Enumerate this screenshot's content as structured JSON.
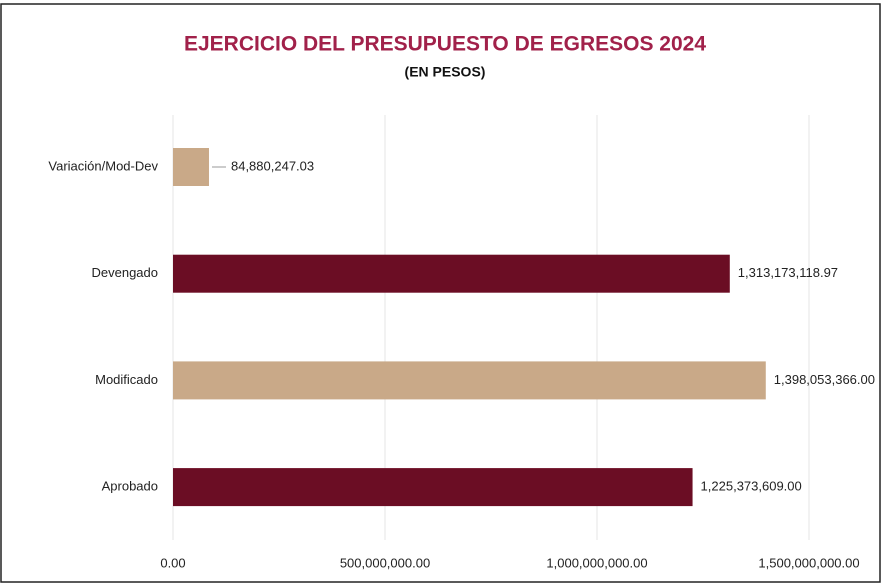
{
  "chart_data": {
    "type": "hbar",
    "title": "EJERCICIO DEL PRESUPUESTO DE EGRESOS 2024",
    "subtitle": "(EN PESOS)",
    "categories": [
      "Variación/Mod-Dev",
      "Devengado",
      "Modificado",
      "Aprobado"
    ],
    "values": [
      84880247.03,
      1313173118.97,
      1398053366.0,
      1225373609.0
    ],
    "value_labels": [
      "84,880,247.03",
      "1,313,173,118.97",
      "1,398,053,366.00",
      "1,225,373,609.00"
    ],
    "colors": [
      "#c9a988",
      "#6b0d24",
      "#c9a988",
      "#6b0d24"
    ],
    "xlim": [
      0,
      1500000000
    ],
    "xticks": [
      {
        "value": 0,
        "label": "0.00"
      },
      {
        "value": 500000000,
        "label": "500,000,000.00"
      },
      {
        "value": 1000000000,
        "label": "1,000,000,000.00"
      },
      {
        "value": 1500000000,
        "label": "1,500,000,000.00"
      }
    ],
    "grid": true
  }
}
